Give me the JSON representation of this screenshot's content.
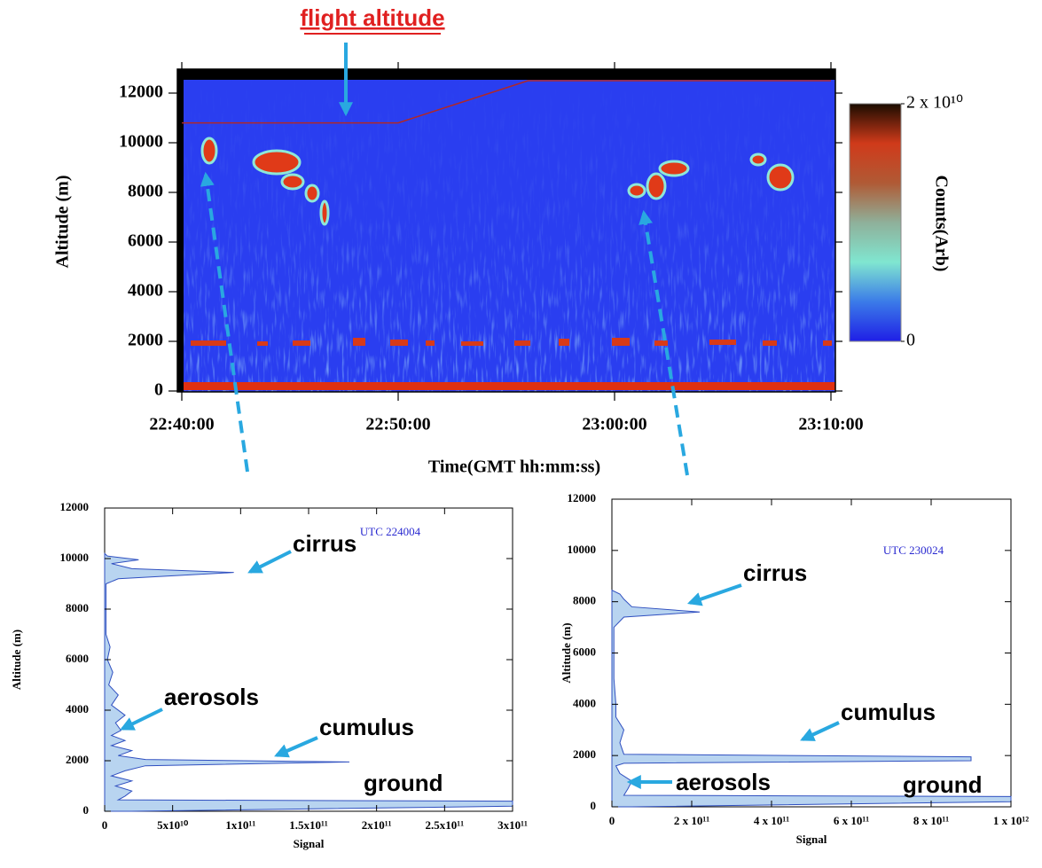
{
  "chart_data": [
    {
      "type": "heatmap",
      "x_label": "Time(GMT hh:mm:ss)",
      "y_label": "Altitude (m)",
      "xlim": [
        "22:40:00",
        "23:10:00"
      ],
      "xticks": [
        "22:40:00",
        "22:50:00",
        "23:00:00",
        "23:10:00"
      ],
      "ylim": [
        0,
        13000
      ],
      "yticks": [
        0,
        2000,
        4000,
        6000,
        8000,
        10000,
        12000
      ],
      "series": [
        {
          "name": "flight altitude",
          "color": "#b02828",
          "x": [
            "22:40:00",
            "22:50:00",
            "22:56:00",
            "23:10:00"
          ],
          "values": [
            10800,
            10800,
            12500,
            12500
          ]
        }
      ],
      "colorbar": {
        "label": "Counts(Arb)",
        "lim": [
          0,
          20000000000.0
        ],
        "ticks": [
          0,
          {
            "value": 20000000000.0,
            "label": "2 x 10¹⁰"
          }
        ],
        "colors": [
          "#1f1fe6",
          "#3b7be8",
          "#80e6d0",
          "#8fb09a",
          "#b05a35",
          "#d03a1a",
          "#1a0c00"
        ]
      }
    },
    {
      "type": "area",
      "annotation": "UTC 224004",
      "x_label": "Signal",
      "y_label": "Altitude (m)",
      "xlim": [
        0,
        300000000000.0
      ],
      "xticks": [
        0,
        {
          "value": 50000000000.0,
          "label": "5x10¹⁰"
        },
        {
          "value": 100000000000.0,
          "label": "1x10¹¹"
        },
        {
          "value": 150000000000.0,
          "label": "1.5x10¹¹"
        },
        {
          "value": 200000000000.0,
          "label": "2x10¹¹"
        },
        {
          "value": 250000000000.0,
          "label": "2.5x10¹¹"
        },
        {
          "value": 300000000000.0,
          "label": "3x10¹¹"
        }
      ],
      "ylim": [
        0,
        12000
      ],
      "yticks": [
        0,
        2000,
        4000,
        6000,
        8000,
        10000,
        12000
      ],
      "color": "#b8d4f0",
      "line_color": "#3050c0",
      "altitude": [
        0,
        200,
        400,
        450,
        600,
        800,
        1000,
        1200,
        1400,
        1600,
        1800,
        1950,
        2050,
        2200,
        2400,
        2600,
        2800,
        3000,
        3200,
        3500,
        3800,
        4200,
        4600,
        5000,
        5500,
        6000,
        6500,
        7000,
        8000,
        9000,
        9200,
        9450,
        9600,
        9800,
        9950,
        10100,
        10200
      ],
      "values": [
        20000000000.0,
        300000000000.0,
        300000000000.0,
        10000000000.0,
        15000000000.0,
        20000000000.0,
        8000000000.0,
        20000000000.0,
        5000000000.0,
        15000000000.0,
        30000000000.0,
        180000000000.0,
        30000000000.0,
        10000000000.0,
        20000000000.0,
        5000000000.0,
        15000000000.0,
        5000000000.0,
        12000000000.0,
        8000000000.0,
        15000000000.0,
        5000000000.0,
        10000000000.0,
        3000000000.0,
        6000000000.0,
        2000000000.0,
        4000000000.0,
        1000000000.0,
        1000000000.0,
        1000000000.0,
        10000000000.0,
        95000000000.0,
        20000000000.0,
        5000000000.0,
        25000000000.0,
        2000000000.0,
        0
      ],
      "annotations": [
        "cirrus",
        "aerosols",
        "cumulus",
        "ground"
      ]
    },
    {
      "type": "area",
      "annotation": "UTC 230024",
      "x_label": "Signal",
      "y_label": "Altitude (m)",
      "xlim": [
        0,
        1000000000000.0
      ],
      "xticks": [
        0,
        {
          "value": 200000000000.0,
          "label": "2 x 10¹¹"
        },
        {
          "value": 400000000000.0,
          "label": "4 x 10¹¹"
        },
        {
          "value": 600000000000.0,
          "label": "6 x 10¹¹"
        },
        {
          "value": 800000000000.0,
          "label": "8 x 10¹¹"
        },
        {
          "value": 1000000000000.0,
          "label": "1 x 10¹²"
        }
      ],
      "ylim": [
        0,
        12000
      ],
      "yticks": [
        0,
        2000,
        4000,
        6000,
        8000,
        10000,
        12000
      ],
      "color": "#b8d4f0",
      "line_color": "#3050c0",
      "altitude": [
        0,
        200,
        400,
        450,
        700,
        1000,
        1300,
        1600,
        1700,
        1800,
        1950,
        2050,
        2500,
        3000,
        3500,
        4000,
        5000,
        6000,
        7000,
        7400,
        7600,
        7800,
        8100,
        8300,
        8450
      ],
      "values": [
        50000000000.0,
        1000000000000.0,
        1000000000000.0,
        30000000000.0,
        40000000000.0,
        50000000000.0,
        20000000000.0,
        10000000000.0,
        30000000000.0,
        900000000000.0,
        900000000000.0,
        30000000000.0,
        20000000000.0,
        30000000000.0,
        10000000000.0,
        10000000000.0,
        5000000000.0,
        5000000000.0,
        5000000000.0,
        30000000000.0,
        220000000000.0,
        50000000000.0,
        30000000000.0,
        20000000000.0,
        0
      ],
      "annotations": [
        "cirrus",
        "cumulus",
        "aerosols",
        "ground"
      ]
    }
  ]
}
